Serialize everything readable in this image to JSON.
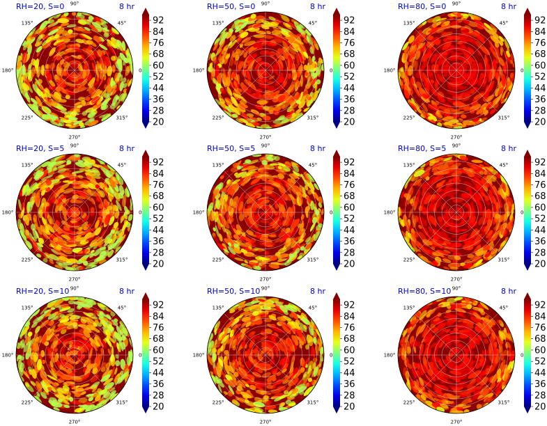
{
  "figure": {
    "colormap": "jet",
    "colorbar_ticks": [
      "92",
      "84",
      "76",
      "68",
      "60",
      "52",
      "44",
      "36",
      "28",
      "20"
    ],
    "angle_ticks": [
      "0°",
      "45°",
      "90°",
      "135°",
      "180°",
      "225°",
      "270°",
      "315°"
    ]
  },
  "chart_data": [
    {
      "type": "heatmap",
      "projection": "polar",
      "title": "RH=20, S=0",
      "time": "8 hr",
      "rh": 20,
      "s": 0,
      "cmin": 20,
      "cmax": 96
    },
    {
      "type": "heatmap",
      "projection": "polar",
      "title": "RH=50, S=0",
      "time": "8 hr",
      "rh": 50,
      "s": 0,
      "cmin": 20,
      "cmax": 96
    },
    {
      "type": "heatmap",
      "projection": "polar",
      "title": "RH=80, S=0",
      "time": "8 hr",
      "rh": 80,
      "s": 0,
      "cmin": 20,
      "cmax": 96
    },
    {
      "type": "heatmap",
      "projection": "polar",
      "title": "RH=20, S=5",
      "time": "8 hr",
      "rh": 20,
      "s": 5,
      "cmin": 20,
      "cmax": 96
    },
    {
      "type": "heatmap",
      "projection": "polar",
      "title": "RH=50, S=5",
      "time": "8 hr",
      "rh": 50,
      "s": 5,
      "cmin": 20,
      "cmax": 96
    },
    {
      "type": "heatmap",
      "projection": "polar",
      "title": "RH=80, S=5",
      "time": "8 hr",
      "rh": 80,
      "s": 5,
      "cmin": 20,
      "cmax": 96
    },
    {
      "type": "heatmap",
      "projection": "polar",
      "title": "RH=20, S=10",
      "time": "8 hr",
      "rh": 20,
      "s": 10,
      "cmin": 20,
      "cmax": 96
    },
    {
      "type": "heatmap",
      "projection": "polar",
      "title": "RH=50, S=10",
      "time": "8 hr",
      "rh": 50,
      "s": 10,
      "cmin": 20,
      "cmax": 96
    },
    {
      "type": "heatmap",
      "projection": "polar",
      "title": "RH=80, S=10",
      "time": "8 hr",
      "rh": 80,
      "s": 10,
      "cmin": 20,
      "cmax": 96
    }
  ]
}
